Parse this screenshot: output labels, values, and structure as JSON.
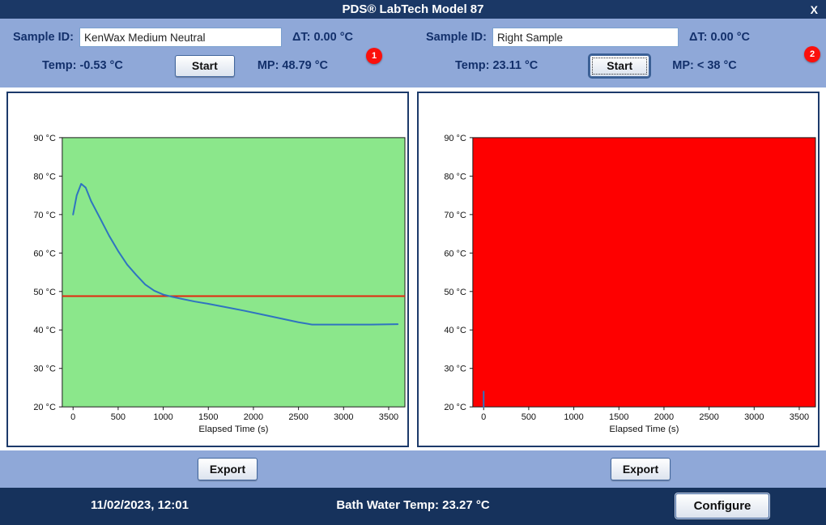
{
  "window": {
    "title": "PDS® LabTech Model 87",
    "close": "X"
  },
  "header": {
    "left": {
      "sample_id_label": "Sample ID:",
      "sample_id_value": "KenWax Medium Neutral",
      "delta_t": "ΔT:  0.00 °C",
      "temp": "Temp:  -0.53 °C",
      "start": "Start",
      "mp": "MP:  48.79 °C",
      "badge": "1"
    },
    "right": {
      "sample_id_label": "Sample ID:",
      "sample_id_value": "Right Sample",
      "delta_t": "ΔT:  0.00 °C",
      "temp": "Temp:  23.11 °C",
      "start": "Start",
      "mp": "MP:  < 38 °C",
      "badge": "2"
    }
  },
  "export": {
    "left": "Export",
    "right": "Export"
  },
  "footer": {
    "datetime": "11/02/2023, 12:01",
    "bath": "Bath Water Temp: 23.27 °C",
    "configure": "Configure"
  },
  "colors": {
    "titlebar": "#1b3866",
    "header_band": "#8fa8d8",
    "footer_bar": "#16325c",
    "badge_red": "#fb100c",
    "label_navy": "#13306b",
    "pass_green": "#8be78b",
    "fail_red": "#fe0000",
    "series_blue": "#2f74c0",
    "threshold_red": "#e3270e"
  },
  "chart_data": [
    {
      "type": "line",
      "title": "",
      "xlabel": "Elapsed Time (s)",
      "ylabel": "",
      "x_ticks": [
        0,
        500,
        1000,
        1500,
        2000,
        2500,
        3000,
        3500
      ],
      "y_ticks": [
        20,
        30,
        40,
        50,
        60,
        70,
        80,
        90
      ],
      "y_unit": "°C",
      "xlim": [
        -120,
        3680
      ],
      "ylim": [
        20,
        90
      ],
      "grid": false,
      "plot_bg": "#8be78b",
      "threshold": {
        "y": 48.79,
        "color": "#e3270e"
      },
      "series": [
        {
          "name": "left-sample-temperature",
          "color": "#2f74c0",
          "points": [
            [
              0,
              70
            ],
            [
              40,
              75
            ],
            [
              90,
              78
            ],
            [
              140,
              77
            ],
            [
              200,
              73.5
            ],
            [
              300,
              69
            ],
            [
              400,
              64.5
            ],
            [
              500,
              60.5
            ],
            [
              600,
              57
            ],
            [
              700,
              54.3
            ],
            [
              800,
              51.8
            ],
            [
              900,
              50.2
            ],
            [
              1000,
              49.2
            ],
            [
              1100,
              48.6
            ],
            [
              1200,
              48.1
            ],
            [
              1350,
              47.4
            ],
            [
              1500,
              46.8
            ],
            [
              1700,
              45.9
            ],
            [
              1900,
              45.0
            ],
            [
              2100,
              44.0
            ],
            [
              2300,
              43.0
            ],
            [
              2500,
              42.0
            ],
            [
              2650,
              41.4
            ],
            [
              2900,
              41.4
            ],
            [
              3100,
              41.4
            ],
            [
              3300,
              41.4
            ],
            [
              3600,
              41.5
            ]
          ]
        }
      ]
    },
    {
      "type": "line",
      "title": "",
      "xlabel": "Elapsed Time (s)",
      "ylabel": "",
      "x_ticks": [
        0,
        500,
        1000,
        1500,
        2000,
        2500,
        3000,
        3500
      ],
      "y_ticks": [
        20,
        30,
        40,
        50,
        60,
        70,
        80,
        90
      ],
      "y_unit": "°C",
      "xlim": [
        -120,
        3680
      ],
      "ylim": [
        20,
        90
      ],
      "grid": false,
      "plot_bg": "#fe0000",
      "series": [
        {
          "name": "right-sample-temperature",
          "color": "#2f74c0",
          "points": [
            [
              0,
              20
            ],
            [
              0,
              24
            ]
          ]
        }
      ]
    }
  ]
}
